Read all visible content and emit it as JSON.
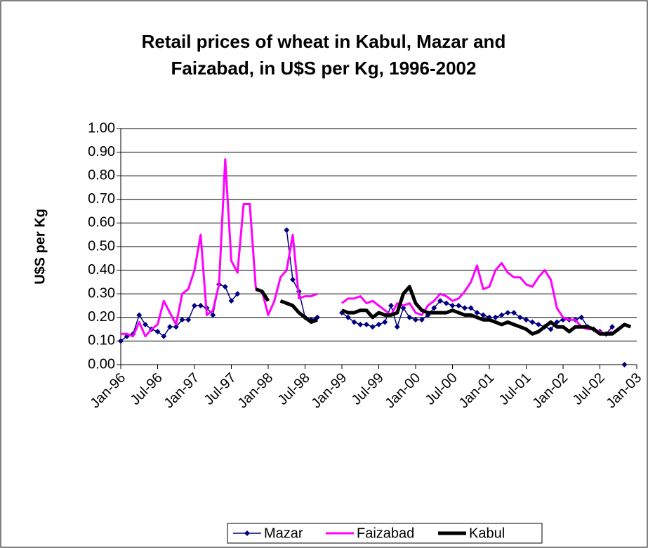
{
  "chart_data": {
    "type": "line",
    "title": "Retail prices of wheat in Kabul, Mazar and Faizabad, in U$S per Kg, 1996-2002",
    "y_label": "U$S per Kg",
    "categories": [
      "Jan-96",
      null,
      null,
      null,
      null,
      null,
      "Jul-96",
      null,
      null,
      null,
      null,
      null,
      "Jan-97",
      null,
      null,
      null,
      null,
      null,
      "Jul-97",
      null,
      null,
      null,
      null,
      null,
      "Jan-98",
      null,
      null,
      null,
      null,
      null,
      "Jul-98",
      null,
      null,
      null,
      null,
      null,
      "Jan-99",
      null,
      null,
      null,
      null,
      null,
      "Jul-99",
      null,
      null,
      null,
      null,
      null,
      "Jan-00",
      null,
      null,
      null,
      null,
      null,
      "Jul-00",
      null,
      null,
      null,
      null,
      null,
      "Jan-01",
      null,
      null,
      null,
      null,
      null,
      "Jul-01",
      null,
      null,
      null,
      null,
      null,
      "Jan-02",
      null,
      null,
      null,
      null,
      null,
      "Jul-02",
      null,
      null,
      null,
      null,
      null,
      "Jan-03"
    ],
    "series": [
      {
        "name": "Mazar",
        "color": "#000080",
        "values": [
          0.1,
          0.12,
          0.13,
          0.21,
          0.17,
          0.15,
          0.14,
          0.12,
          0.16,
          0.16,
          0.19,
          0.19,
          0.25,
          0.25,
          0.24,
          0.21,
          0.34,
          0.33,
          0.27,
          0.3,
          null,
          null,
          null,
          null,
          null,
          null,
          null,
          0.57,
          0.36,
          0.31,
          0.2,
          0.19,
          0.2,
          null,
          null,
          null,
          0.22,
          0.2,
          0.18,
          0.17,
          0.17,
          0.16,
          0.17,
          0.18,
          0.25,
          0.16,
          0.24,
          0.2,
          0.19,
          0.19,
          0.21,
          0.24,
          0.27,
          0.26,
          0.25,
          0.25,
          0.24,
          0.24,
          0.22,
          0.21,
          0.2,
          0.2,
          0.21,
          0.22,
          0.22,
          0.2,
          0.19,
          0.18,
          0.17,
          0.16,
          0.15,
          0.18,
          0.19,
          0.19,
          0.19,
          0.2,
          0.16,
          0.15,
          0.14,
          0.13,
          0.16,
          null,
          0.0,
          null,
          null
        ]
      },
      {
        "name": "Faizabad",
        "color": "#ff00ff",
        "values": [
          0.13,
          0.13,
          0.12,
          0.18,
          0.12,
          0.15,
          0.17,
          0.27,
          0.22,
          0.17,
          0.3,
          0.32,
          0.4,
          0.55,
          0.21,
          0.23,
          0.34,
          0.87,
          0.44,
          0.39,
          0.68,
          0.68,
          0.32,
          0.31,
          0.21,
          0.27,
          0.37,
          0.4,
          0.55,
          0.28,
          0.29,
          0.29,
          0.3,
          null,
          null,
          null,
          0.26,
          0.28,
          0.28,
          0.29,
          0.26,
          0.27,
          0.25,
          0.23,
          0.21,
          0.26,
          0.25,
          0.26,
          0.22,
          0.21,
          0.25,
          0.27,
          0.3,
          0.29,
          0.27,
          0.28,
          0.31,
          0.35,
          0.42,
          0.32,
          0.33,
          0.4,
          0.43,
          0.39,
          0.37,
          0.37,
          0.34,
          0.33,
          0.37,
          0.4,
          0.36,
          0.24,
          0.2,
          0.19,
          0.19,
          0.16,
          0.15,
          0.15,
          0.14,
          0.13,
          0.14,
          null,
          null,
          null,
          null
        ]
      },
      {
        "name": "Kabul",
        "color": "#000000",
        "values": [
          null,
          null,
          null,
          null,
          null,
          null,
          null,
          null,
          null,
          null,
          null,
          null,
          null,
          null,
          null,
          null,
          null,
          null,
          null,
          null,
          null,
          null,
          0.32,
          0.31,
          0.27,
          null,
          0.27,
          0.26,
          0.25,
          0.22,
          0.2,
          0.18,
          0.19,
          null,
          null,
          null,
          0.23,
          0.22,
          0.22,
          0.23,
          0.23,
          0.2,
          0.22,
          0.21,
          0.21,
          0.22,
          0.3,
          0.33,
          0.26,
          0.23,
          0.22,
          0.22,
          0.22,
          0.22,
          0.23,
          0.22,
          0.21,
          0.21,
          0.2,
          0.19,
          0.19,
          0.18,
          0.17,
          0.18,
          0.17,
          0.16,
          0.15,
          0.13,
          0.14,
          0.16,
          0.18,
          0.16,
          0.16,
          0.14,
          0.16,
          0.16,
          0.16,
          0.15,
          0.13,
          0.13,
          0.13,
          0.15,
          0.17,
          0.16,
          null
        ]
      }
    ],
    "ylim": [
      0,
      1
    ],
    "yticks": [
      {
        "value": 0,
        "label": "0.00"
      },
      {
        "value": 0.1,
        "label": "0.10"
      },
      {
        "value": 0.2,
        "label": "0.20"
      },
      {
        "value": 0.3,
        "label": "0.30"
      },
      {
        "value": 0.4,
        "label": "0.40"
      },
      {
        "value": 0.5,
        "label": "0.50"
      },
      {
        "value": 0.6,
        "label": "0.60"
      },
      {
        "value": 0.7,
        "label": "0.70"
      },
      {
        "value": 0.8,
        "label": "0.80"
      },
      {
        "value": 0.9,
        "label": "0.90"
      },
      {
        "value": 1,
        "label": "1.00"
      }
    ],
    "grid": true,
    "legend": "bottom"
  }
}
